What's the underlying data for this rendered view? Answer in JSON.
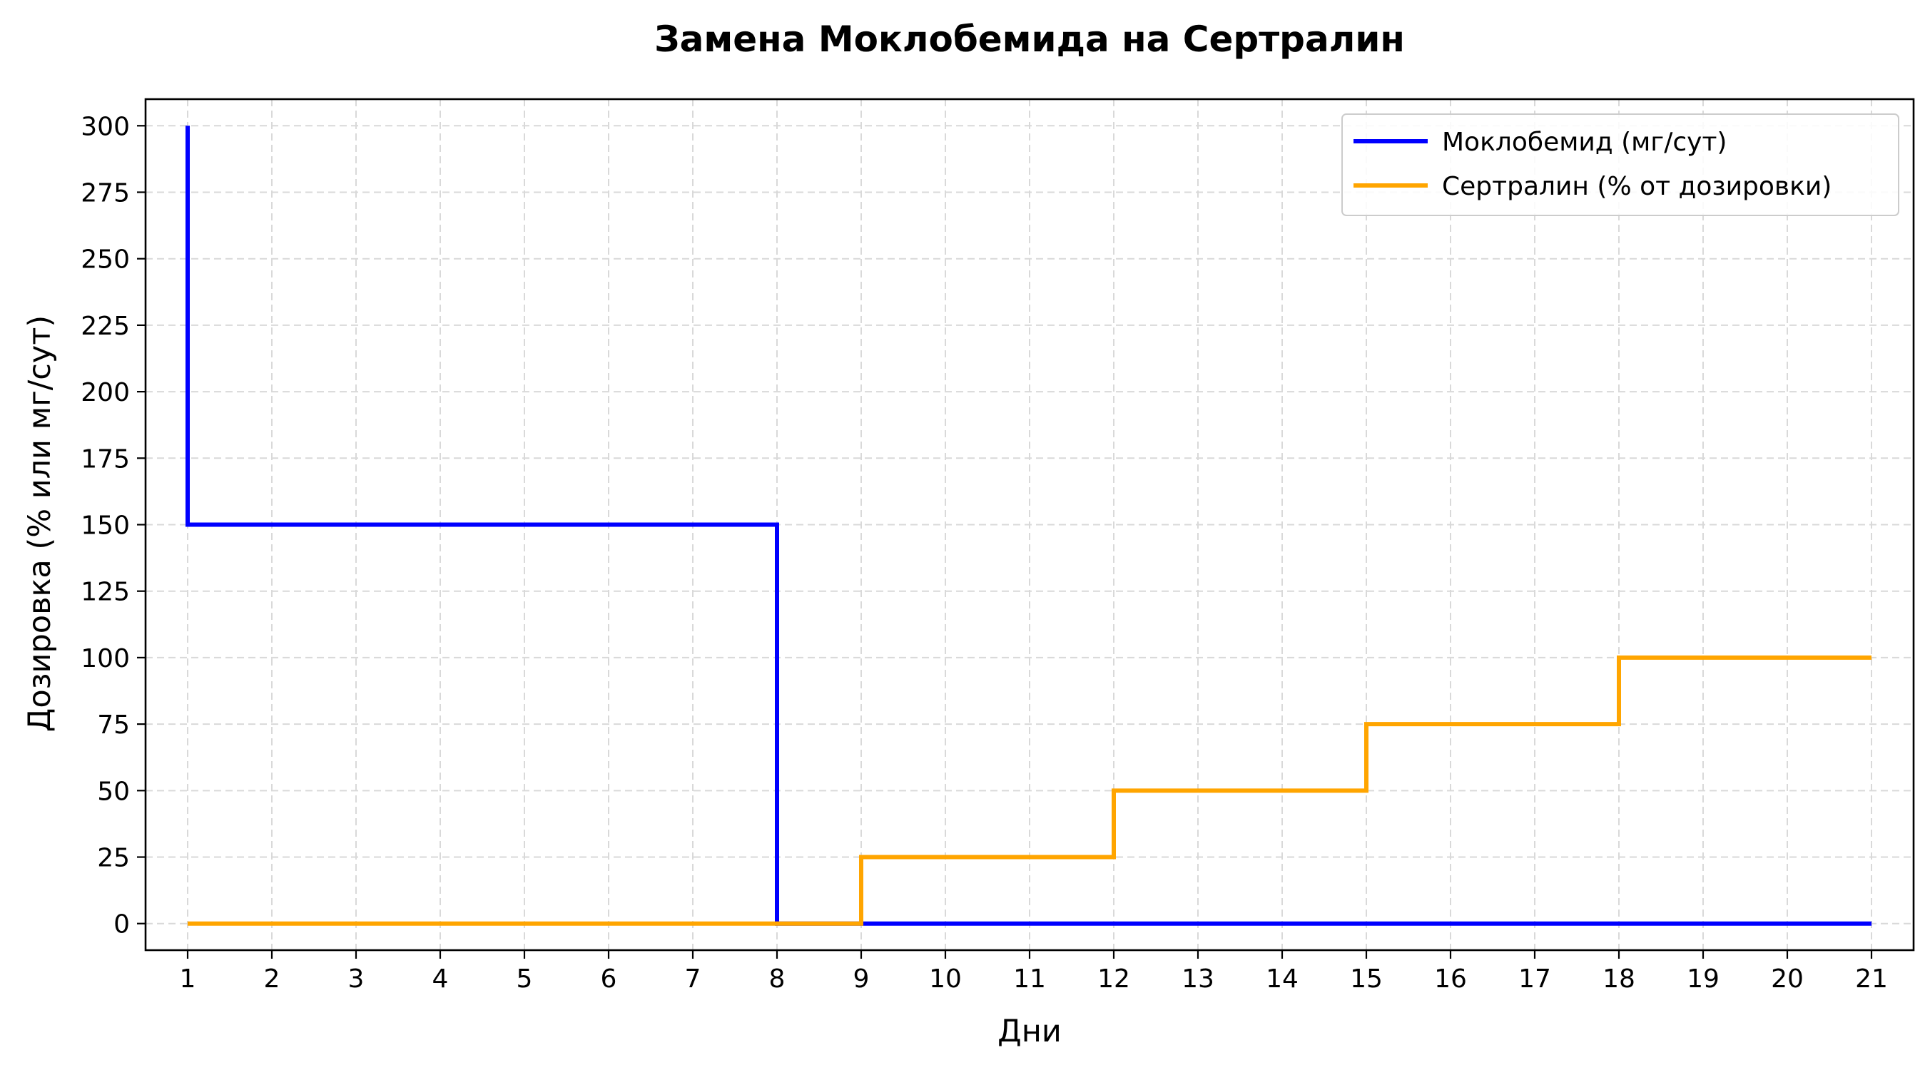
{
  "chart_data": {
    "type": "line",
    "step": "post",
    "title": "Замена Моклобемида на Сертралин",
    "xlabel": "Дни",
    "ylabel": "Дозировка (% или мг/сут)",
    "xlim": [
      0.5,
      21.5
    ],
    "ylim": [
      -10,
      310
    ],
    "x_ticks": [
      1,
      2,
      3,
      4,
      5,
      6,
      7,
      8,
      9,
      10,
      11,
      12,
      13,
      14,
      15,
      16,
      17,
      18,
      19,
      20,
      21
    ],
    "y_ticks": [
      0,
      25,
      50,
      75,
      100,
      125,
      150,
      175,
      200,
      225,
      250,
      275,
      300
    ],
    "grid": true,
    "legend_position": "top-right",
    "series": [
      {
        "name": "Моклобемид (мг/сут)",
        "color": "#0000ff",
        "points": [
          {
            "x": 1,
            "y": 300
          },
          {
            "x": 1,
            "y": 150
          },
          {
            "x": 8,
            "y": 150
          },
          {
            "x": 8,
            "y": 0
          },
          {
            "x": 21,
            "y": 0
          }
        ]
      },
      {
        "name": "Сертралин (% от дозировки)",
        "color": "#ffa500",
        "points": [
          {
            "x": 1,
            "y": 0
          },
          {
            "x": 9,
            "y": 0
          },
          {
            "x": 9,
            "y": 25
          },
          {
            "x": 12,
            "y": 25
          },
          {
            "x": 12,
            "y": 50
          },
          {
            "x": 15,
            "y": 50
          },
          {
            "x": 15,
            "y": 75
          },
          {
            "x": 18,
            "y": 75
          },
          {
            "x": 18,
            "y": 100
          },
          {
            "x": 21,
            "y": 100
          }
        ]
      }
    ]
  }
}
